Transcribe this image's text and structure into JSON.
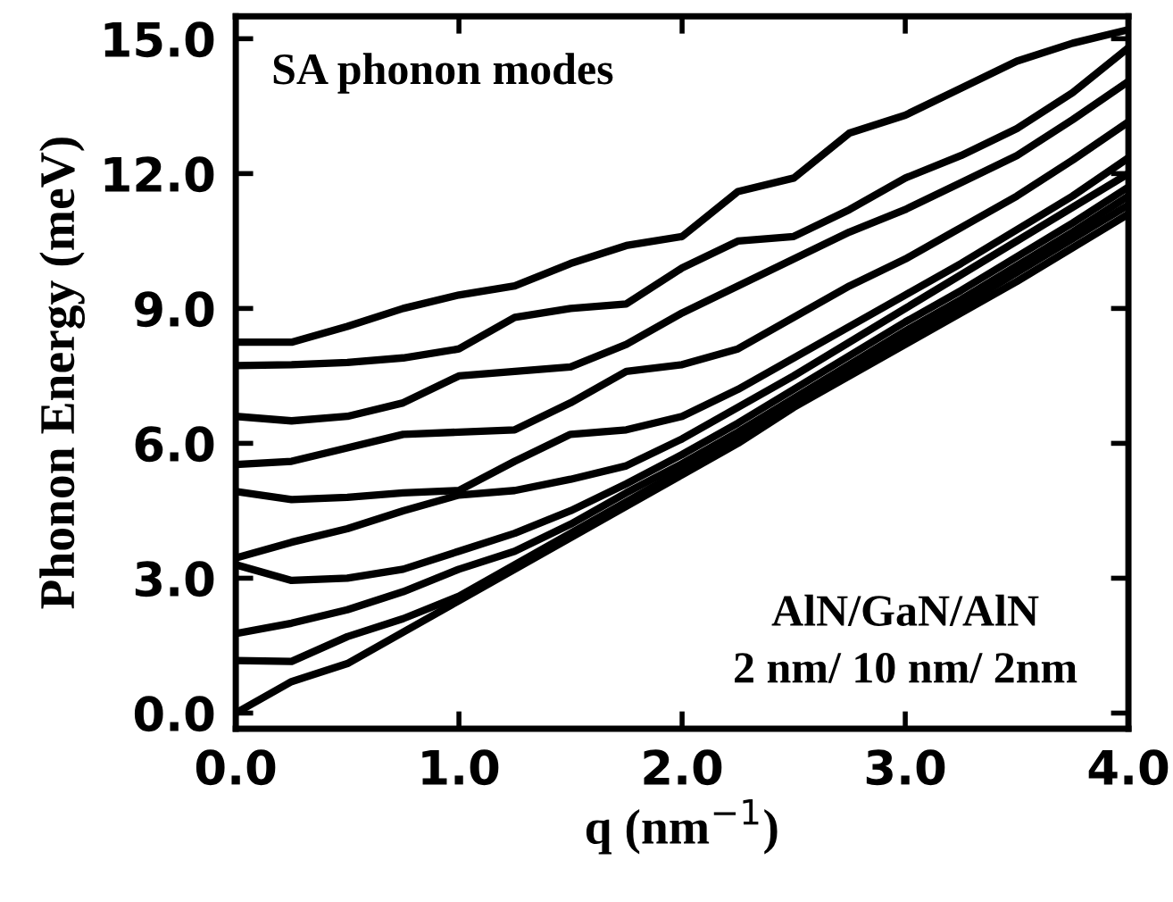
{
  "chart_data": {
    "type": "line",
    "xlabel": "q (nm$^{−1}$)",
    "ylabel": "Phonon Energy (meV)",
    "annotations": [
      "SA phonon modes",
      "AlN/GaN/AlN",
      "2 nm/ 10 nm/ 2nm"
    ],
    "x": [
      0,
      0.25,
      0.5,
      0.75,
      1.0,
      1.25,
      1.5,
      1.75,
      2.0,
      2.25,
      2.5,
      2.75,
      3.0,
      3.25,
      3.5,
      3.75,
      4.0
    ],
    "series": [
      {
        "color": "#000000",
        "values": [
          0,
          0.7,
          1.1,
          1.8,
          2.5,
          3.2,
          3.9,
          4.6,
          5.3,
          6.0,
          6.8,
          7.5,
          8.2,
          8.9,
          9.6,
          10.35,
          11.1
        ]
      },
      {
        "color": "#000000",
        "values": [
          1.17,
          1.15,
          1.7,
          2.1,
          2.6,
          3.3,
          4.0,
          4.7,
          5.4,
          6.1,
          6.9,
          7.6,
          8.35,
          9.05,
          9.8,
          10.55,
          11.3
        ]
      },
      {
        "color": "#000000",
        "values": [
          1.77,
          2.0,
          2.3,
          2.7,
          3.2,
          3.6,
          4.2,
          4.9,
          5.55,
          6.25,
          7.0,
          7.75,
          8.5,
          9.2,
          9.95,
          10.7,
          11.5
        ]
      },
      {
        "color": "#000000",
        "values": [
          3.3,
          2.95,
          3.0,
          3.2,
          3.6,
          4.0,
          4.5,
          5.1,
          5.75,
          6.45,
          7.2,
          7.95,
          8.7,
          9.4,
          10.15,
          10.9,
          11.7
        ]
      },
      {
        "color": "#000000",
        "values": [
          3.45,
          3.8,
          4.1,
          4.5,
          4.85,
          4.95,
          5.2,
          5.5,
          6.1,
          6.8,
          7.5,
          8.25,
          9.0,
          9.75,
          10.5,
          11.25,
          12.0
        ]
      },
      {
        "color": "#000000",
        "values": [
          4.93,
          4.75,
          4.8,
          4.9,
          4.95,
          5.6,
          6.2,
          6.3,
          6.6,
          7.2,
          7.9,
          8.6,
          9.3,
          10.0,
          10.75,
          11.5,
          12.35
        ]
      },
      {
        "color": "#000000",
        "values": [
          5.53,
          5.6,
          5.9,
          6.2,
          6.25,
          6.3,
          6.9,
          7.6,
          7.75,
          8.1,
          8.8,
          9.5,
          10.1,
          10.8,
          11.5,
          12.3,
          13.15
        ]
      },
      {
        "color": "#000000",
        "values": [
          6.6,
          6.5,
          6.6,
          6.9,
          7.5,
          7.6,
          7.7,
          8.2,
          8.9,
          9.5,
          10.1,
          10.7,
          11.2,
          11.8,
          12.4,
          13.2,
          14.05
        ]
      },
      {
        "color": "#000000",
        "values": [
          7.73,
          7.75,
          7.8,
          7.9,
          8.1,
          8.8,
          9.0,
          9.1,
          9.9,
          10.5,
          10.6,
          11.2,
          11.9,
          12.4,
          13.0,
          13.8,
          14.8
        ]
      },
      {
        "color": "#000000",
        "values": [
          8.25,
          8.25,
          8.6,
          9.0,
          9.3,
          9.5,
          10.0,
          10.4,
          10.6,
          11.6,
          11.9,
          12.9,
          13.3,
          13.9,
          14.5,
          14.9,
          15.2
        ]
      }
    ],
    "xlim": [
      0,
      4
    ],
    "ylim": [
      -0.35,
      15.5
    ],
    "xticks": [
      {
        "value": 0,
        "label": "0.0"
      },
      {
        "value": 1,
        "label": "1.0"
      },
      {
        "value": 2,
        "label": "2.0"
      },
      {
        "value": 3,
        "label": "3.0"
      },
      {
        "value": 4,
        "label": "4.0"
      }
    ],
    "yticks": [
      {
        "value": 0,
        "label": "0.0"
      },
      {
        "value": 3,
        "label": "3.0"
      },
      {
        "value": 6,
        "label": "6.0"
      },
      {
        "value": 9,
        "label": "9.0"
      },
      {
        "value": 12,
        "label": "12.0"
      },
      {
        "value": 15,
        "label": "15.0"
      }
    ],
    "grid": false,
    "legend": false,
    "line_style": "solid"
  }
}
